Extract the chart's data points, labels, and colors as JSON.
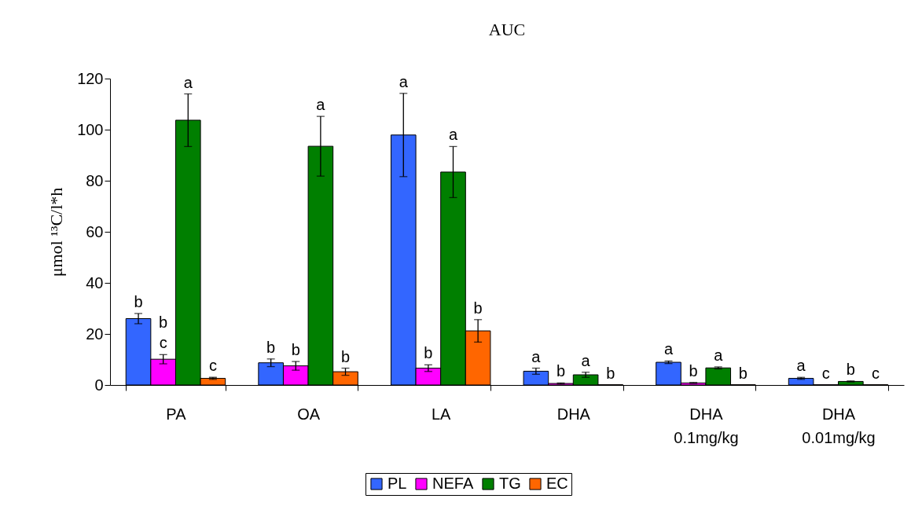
{
  "chart_data": {
    "type": "bar",
    "title": "AUC",
    "ylabel": "μmol ¹³C/l*h",
    "categories": [
      "PA",
      "OA",
      "LA",
      "DHA",
      "DHA\n0.1mg/kg",
      "DHA\n0.01mg/kg"
    ],
    "series": [
      {
        "name": "PL",
        "color": "#3366ff",
        "values": [
          26.0,
          8.7,
          97.9,
          5.4,
          8.9,
          2.6
        ],
        "errors": [
          2,
          1.5,
          16.3,
          1.2,
          0.5,
          0.4
        ],
        "value_labels": [
          "b",
          "b",
          "a",
          "a",
          "a",
          "a"
        ]
      },
      {
        "name": "NEFA",
        "color": "#ff00ff",
        "values": [
          10.1,
          7.5,
          6.6,
          0.6,
          0.8,
          0.1
        ],
        "errors": [
          1.8,
          1.7,
          1.3,
          0.2,
          0.2,
          null
        ],
        "value_labels": [
          "b\nc",
          "b",
          "b",
          "b",
          "b",
          "c"
        ]
      },
      {
        "name": "TG",
        "color": "#007f00",
        "values": [
          103.7,
          93.5,
          83.4,
          4.0,
          6.7,
          1.4
        ],
        "errors": [
          10.3,
          11.7,
          10,
          1,
          0.4,
          0.2
        ],
        "value_labels": [
          "a",
          "a",
          "a",
          "a",
          "a",
          "b"
        ]
      },
      {
        "name": "EC",
        "color": "#ff6600",
        "values": [
          2.6,
          5.2,
          21.2,
          0.1,
          0.1,
          0.1
        ],
        "errors": [
          0.4,
          1.4,
          4.4,
          null,
          null,
          null
        ],
        "value_labels": [
          "c",
          "b",
          "b",
          "b",
          "b",
          "c"
        ]
      }
    ],
    "ylim": [
      0,
      120
    ],
    "yticks": [
      0,
      20,
      40,
      60,
      80,
      100,
      120
    ],
    "grid": false,
    "legend": "bottom"
  }
}
